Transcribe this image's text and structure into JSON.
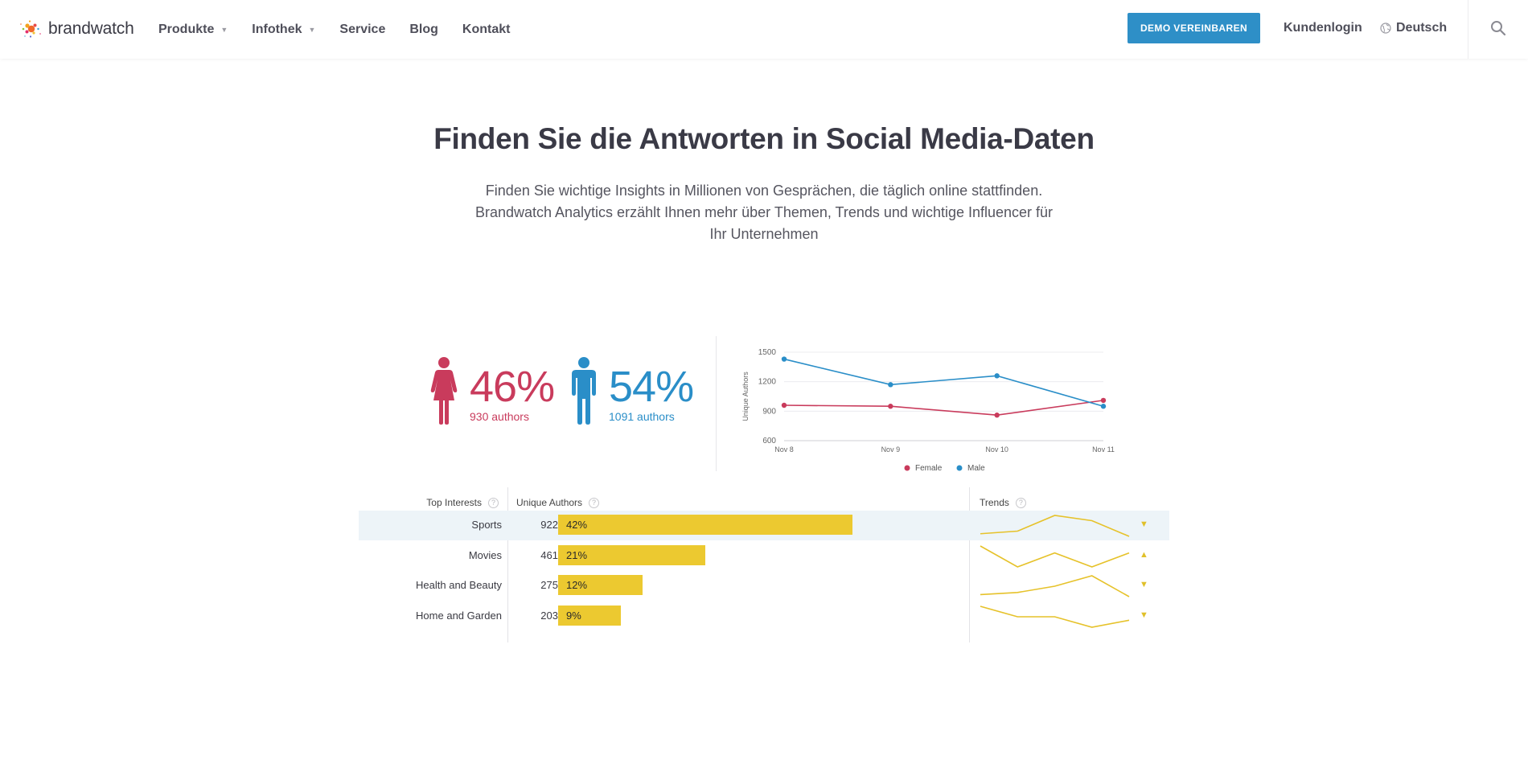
{
  "header": {
    "logo_text": "brandwatch",
    "nav": [
      {
        "label": "Produkte",
        "has_dropdown": true
      },
      {
        "label": "Infothek",
        "has_dropdown": true
      },
      {
        "label": "Service",
        "has_dropdown": false
      },
      {
        "label": "Blog",
        "has_dropdown": false
      },
      {
        "label": "Kontakt",
        "has_dropdown": false
      }
    ],
    "cta_label": "DEMO VEREINBAREN",
    "login_label": "Kundenlogin",
    "language_label": "Deutsch",
    "icons": {
      "language": "globe-icon",
      "search": "search-icon",
      "caret": "chevron-down-icon"
    }
  },
  "hero": {
    "title": "Finden Sie die Antworten in Social Media-Daten",
    "subtitle_lines": [
      "Finden Sie wichtige Insights in Millionen von Gesprächen, die täglich online stattfinden.",
      "Brandwatch Analytics erzählt Ihnen mehr über Themen, Trends und wichtige Influencer für",
      "Ihr Unternehmen"
    ]
  },
  "gender": {
    "female": {
      "percent": "46%",
      "authors": "930 authors",
      "color": "#c93b5c",
      "icon": "female-icon"
    },
    "male": {
      "percent": "54%",
      "authors": "1091 authors",
      "color": "#2a8ec8",
      "icon": "male-icon"
    }
  },
  "chart_data": [
    {
      "type": "line",
      "x": [
        "Nov 8",
        "Nov 9",
        "Nov 10",
        "Nov 11"
      ],
      "ylabel": "Unique Authors",
      "xlabel": "",
      "ylim": [
        600,
        1500
      ],
      "yticks": [
        600,
        900,
        1200,
        1500
      ],
      "grid": true,
      "legend_position": "bottom",
      "series": [
        {
          "name": "Female",
          "color": "#c93b5c",
          "values": [
            960,
            950,
            860,
            1010
          ]
        },
        {
          "name": "Male",
          "color": "#2a8ec8",
          "values": [
            1430,
            1170,
            1260,
            950
          ]
        }
      ]
    },
    {
      "type": "bar",
      "title": "",
      "category_header": "Top Interests",
      "value_header": "Unique Authors",
      "trend_header": "Trends",
      "categories": [
        "Sports",
        "Movies",
        "Health and Beauty",
        "Home and Garden"
      ],
      "values": [
        922,
        461,
        275,
        203
      ],
      "percent_labels": [
        "42%",
        "21%",
        "12%",
        "9%"
      ],
      "percentages": [
        42,
        21,
        12,
        9
      ],
      "bar_color": "#ecc930",
      "trends": [
        {
          "values": [
            2,
            3,
            9,
            7,
            1
          ],
          "direction": "down"
        },
        {
          "values": [
            8,
            2,
            6,
            2,
            6
          ],
          "direction": "up"
        },
        {
          "values": [
            3,
            4,
            7,
            12,
            2
          ],
          "direction": "down"
        },
        {
          "values": [
            9,
            6,
            6,
            3,
            5
          ],
          "direction": "down"
        }
      ],
      "arrows": {
        "up": "▲",
        "down": "▼"
      }
    }
  ]
}
